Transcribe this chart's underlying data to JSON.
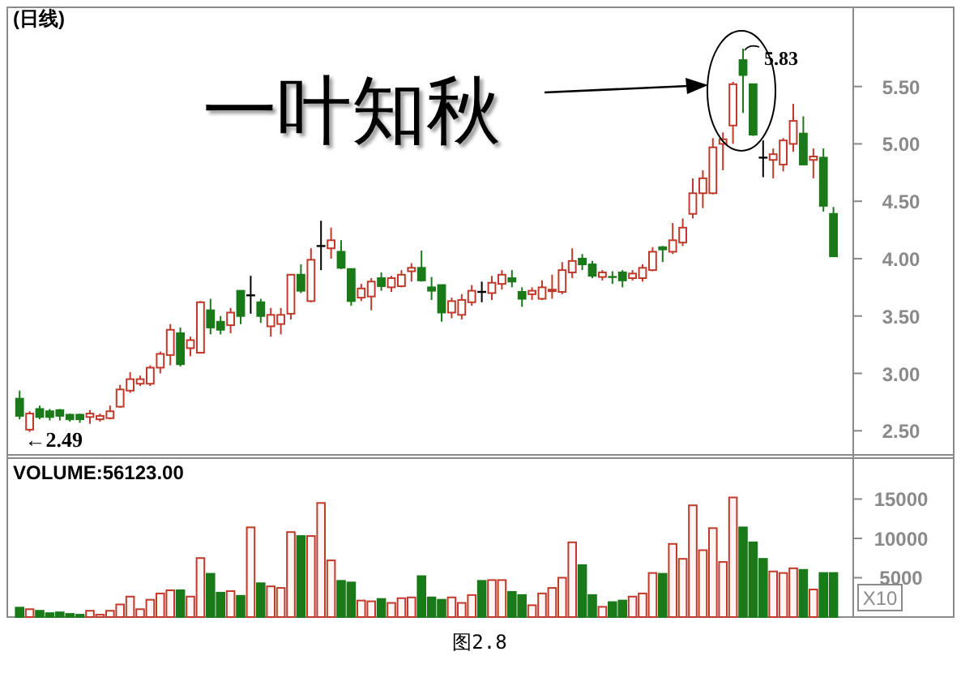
{
  "chart_data": [
    {
      "type": "candlestick",
      "title": "(日线)",
      "tick_labels": "y",
      "grid": false,
      "categories": [
        null,
        null,
        null,
        null,
        null,
        null,
        null,
        null,
        null,
        null,
        null,
        null,
        null,
        null,
        null,
        null,
        null,
        null,
        null,
        null,
        null,
        null,
        null,
        null,
        null,
        null,
        null,
        null,
        null,
        null,
        null,
        null,
        null,
        null,
        null,
        null,
        null,
        null,
        null,
        null,
        null,
        null,
        null,
        null,
        null,
        null,
        null,
        null,
        null,
        null,
        null,
        null,
        null,
        null,
        null,
        null,
        null,
        null,
        null,
        null,
        null,
        null,
        null,
        null,
        null,
        null,
        null,
        null,
        null,
        null,
        null,
        null,
        null,
        null,
        null,
        null,
        null,
        null,
        null,
        null,
        null,
        null
      ],
      "ohlc": [
        [
          2.78,
          2.85,
          2.6,
          2.63
        ],
        [
          2.51,
          2.67,
          2.49,
          2.65
        ],
        [
          2.69,
          2.72,
          2.6,
          2.62
        ],
        [
          2.67,
          2.69,
          2.59,
          2.62
        ],
        [
          2.68,
          2.69,
          2.59,
          2.63
        ],
        [
          2.64,
          2.65,
          2.58,
          2.6
        ],
        [
          2.64,
          2.65,
          2.57,
          2.6
        ],
        [
          2.62,
          2.68,
          2.56,
          2.65
        ],
        [
          2.6,
          2.65,
          2.58,
          2.63
        ],
        [
          2.61,
          2.72,
          2.6,
          2.67
        ],
        [
          2.71,
          2.9,
          2.7,
          2.86
        ],
        [
          2.85,
          3.01,
          2.83,
          2.95
        ],
        [
          2.91,
          2.98,
          2.89,
          2.95
        ],
        [
          2.91,
          3.07,
          2.89,
          3.05
        ],
        [
          3.05,
          3.19,
          3.0,
          3.17
        ],
        [
          3.16,
          3.43,
          3.07,
          3.38
        ],
        [
          3.35,
          3.4,
          3.06,
          3.08
        ],
        [
          3.22,
          3.32,
          3.15,
          3.29
        ],
        [
          3.18,
          3.63,
          3.18,
          3.62
        ],
        [
          3.55,
          3.65,
          3.34,
          3.4
        ],
        [
          3.45,
          3.5,
          3.34,
          3.38
        ],
        [
          3.42,
          3.57,
          3.35,
          3.53
        ],
        [
          3.72,
          3.72,
          3.43,
          3.5
        ],
        [
          3.68,
          3.85,
          3.52,
          3.68
        ],
        [
          3.62,
          3.65,
          3.44,
          3.5
        ],
        [
          3.41,
          3.57,
          3.32,
          3.51
        ],
        [
          3.43,
          3.57,
          3.34,
          3.51
        ],
        [
          3.52,
          3.86,
          3.47,
          3.86
        ],
        [
          3.86,
          3.95,
          3.7,
          3.72
        ],
        [
          3.63,
          4.09,
          3.62,
          3.99
        ],
        [
          4.11,
          4.33,
          3.9,
          4.11
        ],
        [
          4.09,
          4.27,
          4.0,
          4.16
        ],
        [
          4.06,
          4.16,
          3.91,
          3.92
        ],
        [
          3.91,
          3.91,
          3.59,
          3.63
        ],
        [
          3.66,
          3.78,
          3.63,
          3.74
        ],
        [
          3.67,
          3.83,
          3.55,
          3.8
        ],
        [
          3.83,
          3.88,
          3.72,
          3.76
        ],
        [
          3.75,
          3.85,
          3.71,
          3.83
        ],
        [
          3.76,
          3.9,
          3.75,
          3.86
        ],
        [
          3.89,
          3.96,
          3.8,
          3.92
        ],
        [
          3.92,
          4.07,
          3.8,
          3.81
        ],
        [
          3.75,
          3.84,
          3.64,
          3.72
        ],
        [
          3.77,
          3.77,
          3.45,
          3.53
        ],
        [
          3.53,
          3.66,
          3.48,
          3.63
        ],
        [
          3.51,
          3.69,
          3.47,
          3.64
        ],
        [
          3.62,
          3.77,
          3.59,
          3.72
        ],
        [
          3.71,
          3.8,
          3.62,
          3.71
        ],
        [
          3.7,
          3.85,
          3.64,
          3.79
        ],
        [
          3.78,
          3.9,
          3.73,
          3.86
        ],
        [
          3.83,
          3.9,
          3.75,
          3.8
        ],
        [
          3.71,
          3.75,
          3.58,
          3.65
        ],
        [
          3.69,
          3.75,
          3.64,
          3.72
        ],
        [
          3.65,
          3.81,
          3.64,
          3.75
        ],
        [
          3.72,
          3.86,
          3.65,
          3.73
        ],
        [
          3.71,
          3.97,
          3.69,
          3.9
        ],
        [
          3.88,
          4.09,
          3.83,
          3.98
        ],
        [
          4.0,
          4.04,
          3.9,
          3.95
        ],
        [
          3.95,
          3.98,
          3.83,
          3.85
        ],
        [
          3.84,
          3.9,
          3.81,
          3.88
        ],
        [
          3.84,
          3.89,
          3.78,
          3.84
        ],
        [
          3.88,
          3.9,
          3.75,
          3.81
        ],
        [
          3.83,
          3.9,
          3.81,
          3.87
        ],
        [
          3.83,
          3.95,
          3.8,
          3.92
        ],
        [
          3.9,
          4.1,
          3.89,
          4.06
        ],
        [
          4.1,
          4.11,
          3.97,
          4.08
        ],
        [
          4.06,
          4.31,
          4.04,
          4.16
        ],
        [
          4.14,
          4.35,
          4.11,
          4.27
        ],
        [
          4.39,
          4.7,
          4.35,
          4.57
        ],
        [
          4.57,
          4.77,
          4.44,
          4.7
        ],
        [
          4.57,
          5.05,
          4.56,
          4.97
        ],
        [
          5.0,
          5.1,
          4.77,
          5.04
        ],
        [
          5.16,
          5.54,
          5.0,
          5.52
        ],
        [
          5.73,
          5.83,
          5.27,
          5.6
        ],
        [
          5.52,
          5.52,
          5.07,
          5.08
        ],
        [
          4.88,
          5.03,
          4.71,
          4.88
        ],
        [
          4.86,
          4.96,
          4.7,
          4.91
        ],
        [
          4.82,
          5.05,
          4.76,
          5.03
        ],
        [
          5.0,
          5.35,
          4.93,
          5.2
        ],
        [
          5.09,
          5.24,
          4.82,
          4.82
        ],
        [
          4.86,
          4.96,
          4.7,
          4.89
        ],
        [
          4.88,
          4.96,
          4.41,
          4.46
        ],
        [
          4.39,
          4.45,
          4.02,
          4.02
        ]
      ],
      "colors": [
        "#1a7a1a",
        "#c0392b",
        "#1a7a1a",
        "#1a7a1a",
        "#1a7a1a",
        "#1a7a1a",
        "#1a7a1a",
        "#c0392b",
        "#c0392b",
        "#c0392b",
        "#c0392b",
        "#c0392b",
        "#c0392b",
        "#c0392b",
        "#c0392b",
        "#c0392b",
        "#1a7a1a",
        "#c0392b",
        "#c0392b",
        "#1a7a1a",
        "#1a7a1a",
        "#c0392b",
        "#1a7a1a",
        "#000000",
        "#1a7a1a",
        "#c0392b",
        "#c0392b",
        "#c0392b",
        "#1a7a1a",
        "#c0392b",
        "#000000",
        "#c0392b",
        "#1a7a1a",
        "#1a7a1a",
        "#c0392b",
        "#c0392b",
        "#1a7a1a",
        "#c0392b",
        "#c0392b",
        "#c0392b",
        "#1a7a1a",
        "#1a7a1a",
        "#1a7a1a",
        "#c0392b",
        "#c0392b",
        "#c0392b",
        "#000000",
        "#c0392b",
        "#c0392b",
        "#1a7a1a",
        "#1a7a1a",
        "#c0392b",
        "#c0392b",
        "#c0392b",
        "#c0392b",
        "#c0392b",
        "#1a7a1a",
        "#1a7a1a",
        "#c0392b",
        "#1a7a1a",
        "#1a7a1a",
        "#c0392b",
        "#c0392b",
        "#c0392b",
        "#1a7a1a",
        "#c0392b",
        "#c0392b",
        "#c0392b",
        "#c0392b",
        "#c0392b",
        "#c0392b",
        "#c0392b",
        "#1a7a1a",
        "#1a7a1a",
        "#000000",
        "#c0392b",
        "#c0392b",
        "#c0392b",
        "#1a7a1a",
        "#c0392b",
        "#1a7a1a",
        "#1a7a1a"
      ],
      "ylim": [
        2.29,
        6.19
      ],
      "yticks": [
        {
          "value": 2.5,
          "label": "2.50"
        },
        {
          "value": 3,
          "label": "3.00"
        },
        {
          "value": 3.5,
          "label": "3.50"
        },
        {
          "value": 4,
          "label": "4.00"
        },
        {
          "value": 4.5,
          "label": "4.50"
        },
        {
          "value": 5,
          "label": "5.00"
        },
        {
          "value": 5.5,
          "label": "5.50"
        }
      ],
      "annotations": [
        "一叶知秋",
        "5.83",
        "←2.49"
      ]
    },
    {
      "type": "bar",
      "title": "VOLUME:56123.00",
      "tick_labels": "y",
      "grid": false,
      "categories": [
        null,
        null,
        null,
        null,
        null,
        null,
        null,
        null,
        null,
        null,
        null,
        null,
        null,
        null,
        null,
        null,
        null,
        null,
        null,
        null,
        null,
        null,
        null,
        null,
        null,
        null,
        null,
        null,
        null,
        null,
        null,
        null,
        null,
        null,
        null,
        null,
        null,
        null,
        null,
        null,
        null,
        null,
        null,
        null,
        null,
        null,
        null,
        null,
        null,
        null,
        null,
        null,
        null,
        null,
        null,
        null,
        null,
        null,
        null,
        null,
        null,
        null,
        null,
        null,
        null,
        null,
        null,
        null,
        null,
        null,
        null,
        null,
        null,
        null,
        null,
        null,
        null,
        null,
        null,
        null,
        null,
        null
      ],
      "values": [
        1200,
        1000,
        800,
        500,
        600,
        400,
        300,
        800,
        300,
        800,
        1600,
        2600,
        1000,
        2200,
        3000,
        3400,
        3400,
        2600,
        7500,
        5500,
        3100,
        3300,
        2700,
        11400,
        4300,
        3900,
        3700,
        10800,
        10300,
        10300,
        14500,
        7200,
        4600,
        4400,
        2100,
        2000,
        2300,
        1800,
        2400,
        2500,
        5200,
        2500,
        2200,
        2500,
        1800,
        2800,
        4600,
        4700,
        4700,
        3200,
        2800,
        1500,
        3000,
        3700,
        5000,
        9500,
        6600,
        2800,
        1300,
        1900,
        2100,
        2600,
        3000,
        5600,
        5500,
        9300,
        7400,
        14200,
        8500,
        11300,
        7000,
        15200,
        11400,
        9500,
        7400,
        5800,
        5600,
        6200,
        6000,
        3500,
        5600,
        5600
      ],
      "colors": [
        "#1a7a1a",
        "#c0392b",
        "#1a7a1a",
        "#1a7a1a",
        "#1a7a1a",
        "#1a7a1a",
        "#1a7a1a",
        "#c0392b",
        "#c0392b",
        "#c0392b",
        "#c0392b",
        "#c0392b",
        "#c0392b",
        "#c0392b",
        "#c0392b",
        "#c0392b",
        "#1a7a1a",
        "#c0392b",
        "#c0392b",
        "#1a7a1a",
        "#1a7a1a",
        "#c0392b",
        "#1a7a1a",
        "#c0392b",
        "#1a7a1a",
        "#c0392b",
        "#c0392b",
        "#c0392b",
        "#1a7a1a",
        "#c0392b",
        "#c0392b",
        "#c0392b",
        "#1a7a1a",
        "#1a7a1a",
        "#c0392b",
        "#c0392b",
        "#1a7a1a",
        "#c0392b",
        "#c0392b",
        "#c0392b",
        "#1a7a1a",
        "#1a7a1a",
        "#1a7a1a",
        "#c0392b",
        "#c0392b",
        "#c0392b",
        "#1a7a1a",
        "#c0392b",
        "#c0392b",
        "#1a7a1a",
        "#1a7a1a",
        "#c0392b",
        "#c0392b",
        "#c0392b",
        "#c0392b",
        "#c0392b",
        "#1a7a1a",
        "#1a7a1a",
        "#c0392b",
        "#1a7a1a",
        "#1a7a1a",
        "#c0392b",
        "#c0392b",
        "#c0392b",
        "#1a7a1a",
        "#c0392b",
        "#c0392b",
        "#c0392b",
        "#c0392b",
        "#c0392b",
        "#c0392b",
        "#c0392b",
        "#1a7a1a",
        "#1a7a1a",
        "#1a7a1a",
        "#c0392b",
        "#c0392b",
        "#c0392b",
        "#1a7a1a",
        "#c0392b",
        "#1a7a1a",
        "#1a7a1a"
      ],
      "ylim": [
        0,
        20200
      ],
      "yticks": [
        5000,
        10000,
        15000
      ],
      "annotations": [
        "X10",
        "图2.8"
      ]
    }
  ]
}
